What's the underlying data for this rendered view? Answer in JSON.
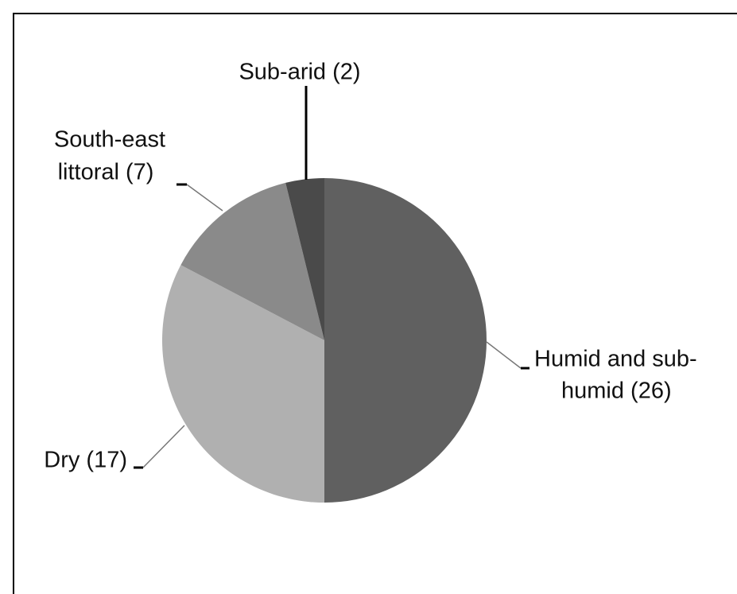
{
  "chart_data": {
    "type": "pie",
    "values": [
      26,
      17,
      7,
      2
    ],
    "value_labels": [
      [
        "Humid and sub-",
        "humid (26)"
      ],
      [
        "Dry (17)"
      ],
      [
        "South-east",
        "littoral (7)"
      ],
      [
        "Sub-arid (2)"
      ]
    ],
    "colors": [
      "#606060",
      "#b0b0b0",
      "#8a8a8a",
      "#4a4a4a"
    ]
  }
}
